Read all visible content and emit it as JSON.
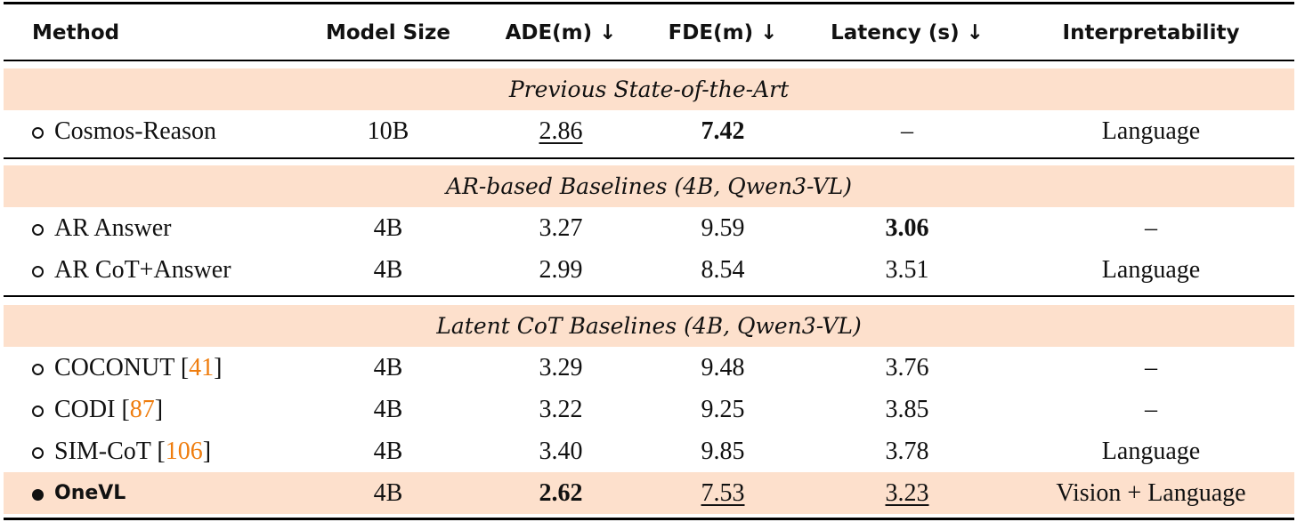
{
  "header": [
    "Method",
    "Model Size",
    "ADE(m) ↓",
    "FDE(m) ↓",
    "Latency (s) ↓",
    "Interpretability"
  ],
  "sections": [
    {
      "title": "Previous State-of-the-Art",
      "rows": [
        {
          "method": [
            "Cosmos-Reason"
          ],
          "cells": [
            "10B",
            "2.86",
            "7.42",
            "–",
            "Language"
          ]
        }
      ]
    },
    {
      "title": "AR-based Baselines (4B, Qwen3-VL)",
      "rows": [
        {
          "method": [
            "AR Answer"
          ],
          "cells": [
            "4B",
            "3.27",
            "9.59",
            "3.06",
            "–"
          ]
        },
        {
          "method": [
            "AR CoT+Answer"
          ],
          "cells": [
            "4B",
            "2.99",
            "8.54",
            "3.51",
            "Language"
          ]
        }
      ]
    },
    {
      "title": "Latent CoT Baselines (4B, Qwen3-VL)",
      "rows": [
        {
          "method": [
            "COCONUT [",
            "41",
            "]"
          ],
          "cells": [
            "4B",
            "3.29",
            "9.48",
            "3.76",
            "–"
          ]
        },
        {
          "method": [
            "CODI [",
            "87",
            "]"
          ],
          "cells": [
            "4B",
            "3.22",
            "9.25",
            "3.85",
            "–"
          ]
        },
        {
          "method": [
            "SIM-CoT [",
            "106",
            "]"
          ],
          "cells": [
            "4B",
            "3.40",
            "9.85",
            "3.78",
            "Language"
          ]
        },
        {
          "method": [
            "OneVL"
          ],
          "cells": [
            "4B",
            "2.62",
            "7.53",
            "3.23",
            "Vision + Language"
          ]
        }
      ]
    }
  ]
}
